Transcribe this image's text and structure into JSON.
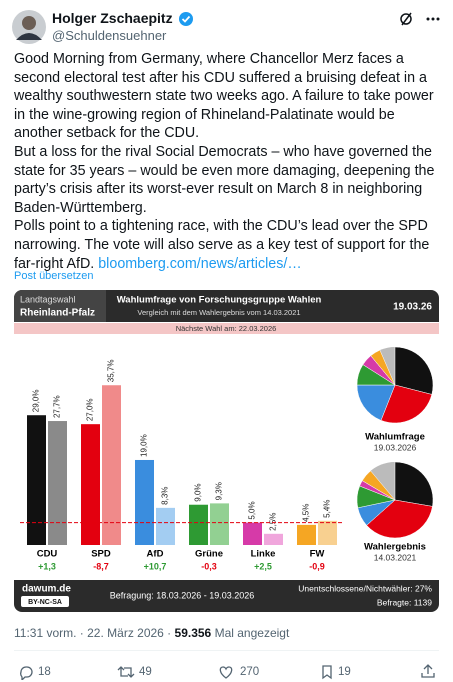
{
  "tweet": {
    "name": "Holger Zschaepitz",
    "handle": "@Schuldensuehner",
    "paragraphs": [
      "Good Morning from Germany, where Chancellor Merz faces a second electoral test after his CDU suffered a bruising defeat in a wealthy southwestern state two weeks ago. A failure to take power in the wine-growing region of Rhineland-Palatinate would be another setback for the CDU.",
      "But a loss for the rival Social Democrats – who have governed the state for 35 years – would be even more damaging, deepening the party’s crisis after its worst-ever result on March 8 in neighboring Baden-Württemberg.",
      "Polls point to a tightening race, with the CDU’s lead over the SPD narrowing. The vote will also serve as a key test of support for the far-right AfD."
    ],
    "link": "bloomberg.com/news/articles/…",
    "translate": "Post übersetzen",
    "time": "11:31 vorm. · 22. März 2026 ·",
    "views": "59.356",
    "views_label": "Mal angezeigt",
    "replies": 18,
    "reposts": 49,
    "likes": 270,
    "bookmarks": 19
  },
  "chart_data": {
    "type": "bar",
    "header_left": "Landtagswahl",
    "header_state": "Rheinland-Pfalz",
    "title": "Wahlumfrage von Forschungsgruppe Wahlen",
    "subtitle": "Vergleich mit dem Wahlergebnis vom 14.03.2021",
    "date": "19.03.26",
    "next_election": "Nächste Wahl am: 22.03.2026",
    "categories": [
      "CDU",
      "SPD",
      "AfD",
      "Grüne",
      "Linke",
      "FW"
    ],
    "series": [
      {
        "name": "Wahlumfrage",
        "date": "19.03.2026",
        "colors": [
          "#111111",
          "#e3000f",
          "#3a8dde",
          "#2e9a33",
          "#d63aa8",
          "#f5a623"
        ],
        "values": [
          29.0,
          27.0,
          19.0,
          9.0,
          5.0,
          4.5
        ],
        "value_labels": [
          "29,0%",
          "27,0%",
          "19,0%",
          "9,0%",
          "5,0%",
          "4,5%"
        ]
      },
      {
        "name": "Wahlergebnis",
        "date": "14.03.2021",
        "colors": [
          "#8a8a8a",
          "#f08a8a",
          "#a3cdf2",
          "#92d092",
          "#f0a6dc",
          "#f8d090"
        ],
        "values": [
          27.7,
          35.7,
          8.3,
          9.3,
          2.5,
          5.4
        ],
        "value_labels": [
          "27,7%",
          "35,7%",
          "8,3%",
          "9,3%",
          "2,5%",
          "5,4%"
        ]
      }
    ],
    "diffs": {
      "values": [
        1.3,
        -8.7,
        10.7,
        -0.3,
        2.5,
        -0.9
      ],
      "value_labels": [
        "+1,3",
        "-8,7",
        "+10,7",
        "-0,3",
        "+2,5",
        "-0,9"
      ],
      "colors": {
        "up": "#2e9a33",
        "down": "#e3000f"
      }
    },
    "threshold": 5,
    "ylim": [
      0,
      40
    ],
    "footer_source": "dawum.de",
    "footer_license": "BY-NC-SA",
    "footer_period": "Befragung: 18.03.2026 - 19.03.2026",
    "footer_undecided": "Unentschlossene/Nichtwähler: 27%",
    "footer_sample": "Befragte: 1139"
  }
}
